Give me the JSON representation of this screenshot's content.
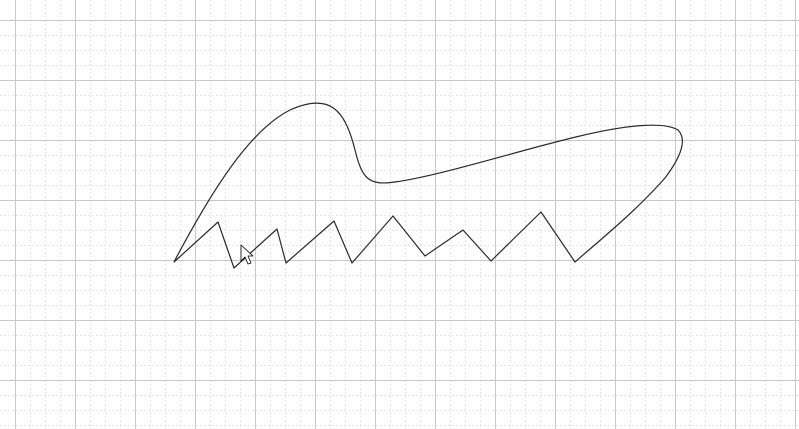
{
  "canvas": {
    "background": "#ffffff",
    "grid": {
      "visible": true,
      "minor_color": "#dedede",
      "major_color": "#c8c8c8",
      "minor_style": "dashed",
      "major_style": "solid"
    }
  },
  "drawing": {
    "shape_name": "freehand-sketch",
    "stroke_color": "#2a2a2a",
    "fill": "none"
  },
  "cursor": {
    "icon": "arrow-cursor-icon",
    "fill": "#ffffff",
    "stroke": "#000000"
  }
}
